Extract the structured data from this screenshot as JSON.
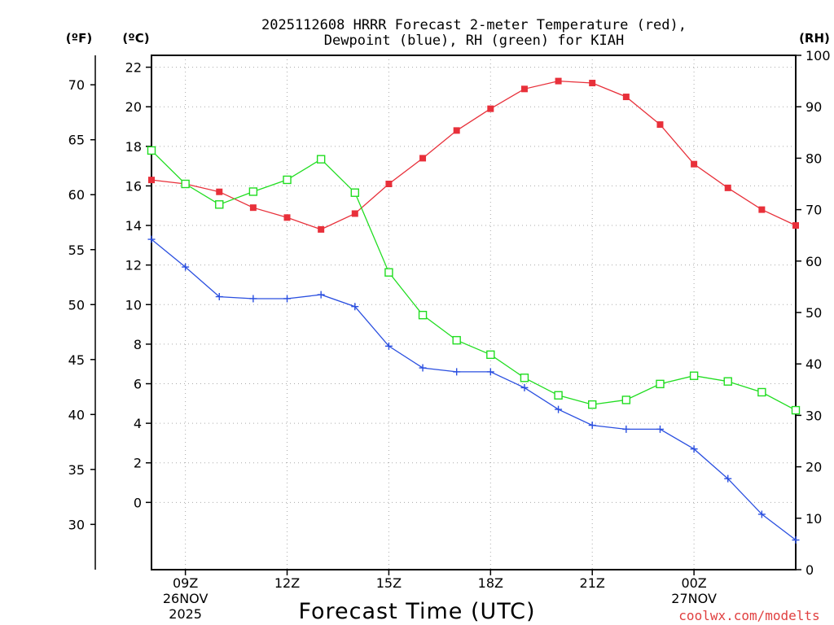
{
  "chart_data": {
    "type": "line",
    "title_line1": "2025112608 HRRR Forecast 2-meter Temperature (red),",
    "title_line2": "Dewpoint (blue), RH (green) for KIAH",
    "xlabel": "Forecast Time (UTC)",
    "credit": "coolwx.com/modelts",
    "left_outer_axis_label": "(ºF)",
    "left_inner_axis_label": "(ºC)",
    "right_axis_label": "(RH)",
    "x_hours": [
      8,
      9,
      10,
      11,
      12,
      13,
      14,
      15,
      16,
      17,
      18,
      19,
      20,
      21,
      22,
      23,
      24,
      25,
      26,
      27
    ],
    "x_ticks": [
      {
        "hour": 9,
        "lines": [
          "09Z",
          "26NOV",
          "2025"
        ]
      },
      {
        "hour": 12,
        "lines": [
          "12Z"
        ]
      },
      {
        "hour": 15,
        "lines": [
          "15Z"
        ]
      },
      {
        "hour": 18,
        "lines": [
          "18Z"
        ]
      },
      {
        "hour": 21,
        "lines": [
          "21Z"
        ]
      },
      {
        "hour": 24,
        "lines": [
          "00Z",
          "27NOV"
        ]
      }
    ],
    "xlim": [
      8,
      27
    ],
    "c_ylim": [
      -3.4,
      22.6
    ],
    "c_ticks": [
      0,
      2,
      4,
      6,
      8,
      10,
      12,
      14,
      16,
      18,
      20,
      22
    ],
    "f_ticks": [
      30,
      35,
      40,
      45,
      50,
      55,
      60,
      65,
      70
    ],
    "rh_ylim": [
      0,
      100
    ],
    "rh_ticks": [
      0,
      10,
      20,
      30,
      40,
      50,
      60,
      70,
      80,
      90,
      100
    ],
    "colors": {
      "temperature": "#e8303a",
      "dewpoint": "#2a4fe0",
      "rh": "#20dd20",
      "credit": "#e04040",
      "grid": "#aaaaaa"
    },
    "series": [
      {
        "name": "Temperature",
        "axis": "C",
        "marker": "filled-square",
        "values": [
          16.3,
          16.1,
          15.7,
          14.9,
          14.4,
          13.8,
          14.6,
          16.1,
          17.4,
          18.8,
          19.9,
          20.9,
          21.3,
          21.2,
          20.5,
          19.1,
          17.1,
          15.9,
          14.8,
          14.0
        ]
      },
      {
        "name": "Dewpoint",
        "axis": "C",
        "marker": "plus",
        "values": [
          13.3,
          11.9,
          10.4,
          10.3,
          10.3,
          10.5,
          9.9,
          7.9,
          6.8,
          6.6,
          6.6,
          5.8,
          4.7,
          3.9,
          3.7,
          3.7,
          2.7,
          1.2,
          -0.6,
          -1.9
        ]
      },
      {
        "name": "RH",
        "axis": "RH",
        "marker": "open-square",
        "values": [
          81.5,
          75.0,
          71.0,
          73.5,
          75.8,
          79.8,
          73.3,
          57.8,
          49.5,
          44.6,
          41.8,
          37.3,
          33.9,
          32.1,
          33.0,
          36.1,
          37.7,
          36.6,
          34.5,
          31.0
        ]
      }
    ]
  }
}
